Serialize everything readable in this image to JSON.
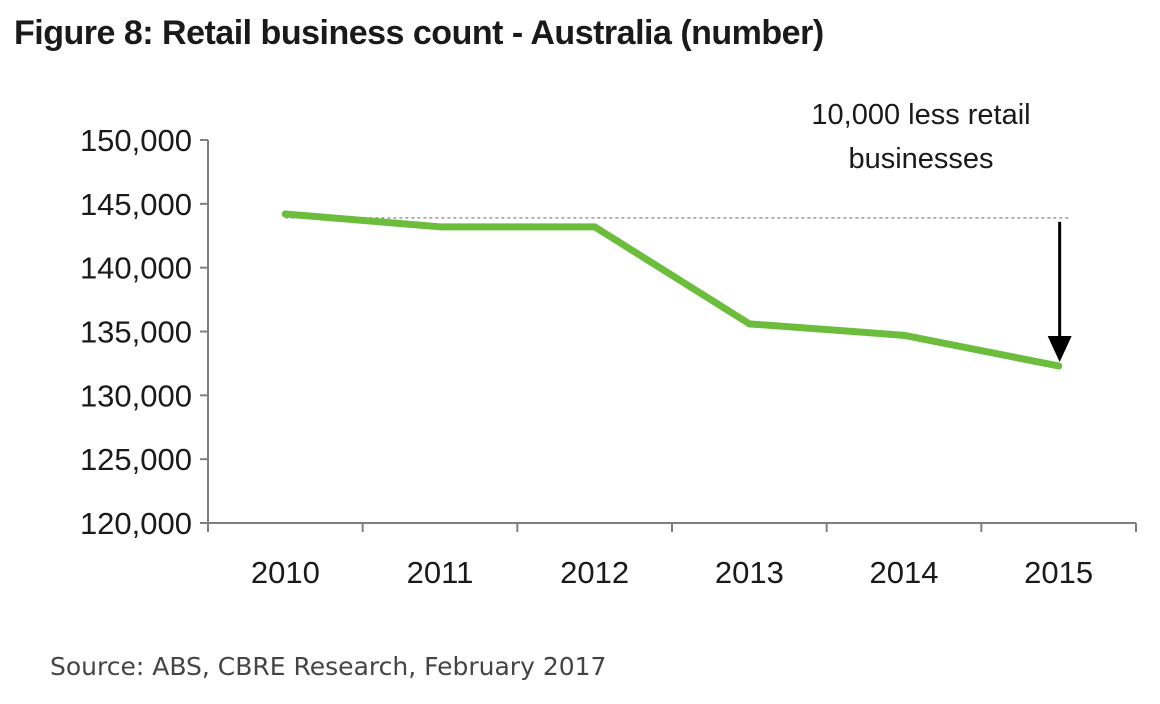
{
  "figure_title": "Figure 8: Retail business count - Australia (number)",
  "source": "Source:  ABS, CBRE Research, February 2017",
  "colors": {
    "line": "#6cbd3c",
    "axis": "#7f7f7f",
    "reference": "#9a9a9a",
    "arrow": "#000000",
    "text": "#1a1a1a"
  },
  "chart_data": {
    "type": "line",
    "title": "Figure 8: Retail business count - Australia (number)",
    "xlabel": "",
    "ylabel": "",
    "categories": [
      "2010",
      "2011",
      "2012",
      "2013",
      "2014",
      "2015"
    ],
    "series": [
      {
        "values": [
          144200,
          143200,
          143200,
          135600,
          134700,
          132300
        ]
      }
    ],
    "ylim": [
      120000,
      150000
    ],
    "y_ticks": [
      150000,
      145000,
      140000,
      135000,
      130000,
      125000,
      120000
    ],
    "y_tick_labels": [
      "150,000",
      "145,000",
      "140,000",
      "135,000",
      "130,000",
      "125,000",
      "120,000"
    ],
    "grid": false,
    "legend": "none",
    "reference_line": {
      "value": 143900,
      "from": "2010",
      "to": "2015",
      "style": "dashed"
    },
    "annotation": {
      "lines": [
        "10,000 less retail",
        "businesses"
      ],
      "arrow_from": 143900,
      "arrow_to": 132300,
      "at": "2015"
    }
  }
}
